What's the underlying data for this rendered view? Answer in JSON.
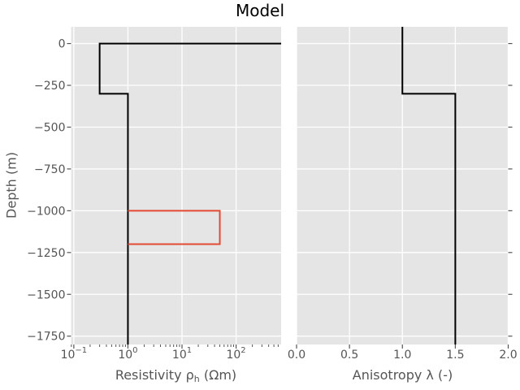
{
  "chart_data": {
    "type": "line",
    "title": "Model",
    "ylabel": "Depth (m)",
    "ylim": [
      -1800,
      100
    ],
    "yticks": [
      0,
      -250,
      -500,
      -750,
      -1000,
      -1250,
      -1500,
      -1750
    ],
    "ytick_labels": [
      "0",
      "−250",
      "−500",
      "−750",
      "−1000",
      "−1250",
      "−1500",
      "−1750"
    ],
    "grid": true,
    "legend": "none",
    "panels": [
      {
        "xlabel_pre": "Resistivity ρ",
        "xlabel_sub": "h",
        "xlabel_post": " (Ωm)",
        "xscale": "log",
        "xlim": [
          0.089,
          680
        ],
        "xtick_exponents": [
          -1,
          0,
          1,
          2
        ],
        "series": [
          {
            "name": "model-resistivity",
            "color": "#000000",
            "linewidth": 2,
            "points": [
              [
                680,
                0
              ],
              [
                0.3,
                0
              ],
              [
                0.3,
                -300
              ],
              [
                1,
                -300
              ],
              [
                1,
                -1800
              ]
            ]
          },
          {
            "name": "target-resistivity",
            "color": "#E24A33",
            "linewidth": 2,
            "points": [
              [
                1,
                -1000
              ],
              [
                50,
                -1000
              ],
              [
                50,
                -1200
              ],
              [
                1,
                -1200
              ]
            ]
          }
        ]
      },
      {
        "xlabel": "Anisotropy λ (-)",
        "xscale": "linear",
        "xlim": [
          0,
          2
        ],
        "xticks": [
          0,
          0.5,
          1,
          1.5,
          2
        ],
        "xtick_labels": [
          "0.0",
          "0.5",
          "1.0",
          "1.5",
          "2.0"
        ],
        "series": [
          {
            "name": "model-anisotropy",
            "color": "#000000",
            "linewidth": 2,
            "points": [
              [
                1,
                100
              ],
              [
                1,
                -300
              ],
              [
                1.5,
                -300
              ],
              [
                1.5,
                -1800
              ]
            ]
          }
        ]
      }
    ],
    "colors": {
      "axes_bg": "#E5E5E5",
      "grid": "#FFFFFF",
      "tick": "#555555",
      "tick_text": "#555555",
      "title": "#000000"
    }
  }
}
